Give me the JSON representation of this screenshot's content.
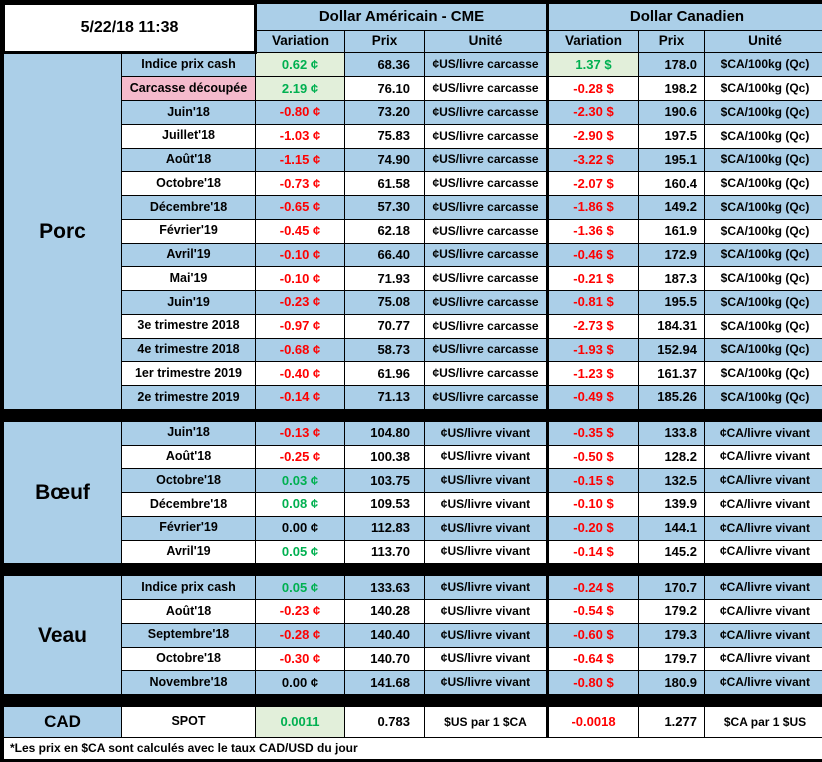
{
  "header": {
    "timestamp": "5/22/18 11:38",
    "us": {
      "title": "Dollar Américain - CME",
      "columns": [
        "Variation",
        "Prix",
        "Unité"
      ]
    },
    "ca": {
      "title": "Dollar Canadien",
      "columns": [
        "Variation",
        "Prix",
        "Unité"
      ]
    }
  },
  "colors": {
    "stripe_blue": "#ABCFE8",
    "pink": "#F4BACC",
    "highlight_green": "#E2EFDA",
    "positive_green": "#00B050",
    "negative_red": "#FF0000"
  },
  "sections": [
    {
      "name": "Porc",
      "rows": [
        {
          "label": "Indice prix cash",
          "us": {
            "variation": "0.62 ¢",
            "tone": "pos",
            "hl": true,
            "prix": "68.36",
            "unite": "¢US/livre carcasse"
          },
          "ca": {
            "variation": "1.37 $",
            "tone": "pos",
            "hl": true,
            "prix": "178.0",
            "unite": "$CA/100kg (Qc)"
          }
        },
        {
          "label": "Carcasse découpée",
          "highlight": "pink",
          "us": {
            "variation": "2.19 ¢",
            "tone": "pos",
            "hl": true,
            "prix": "76.10",
            "unite": "¢US/livre carcasse"
          },
          "ca": {
            "variation": "-0.28 $",
            "tone": "neg",
            "prix": "198.2",
            "unite": "$CA/100kg (Qc)"
          }
        },
        {
          "label": "Juin'18",
          "us": {
            "variation": "-0.80 ¢",
            "tone": "neg",
            "prix": "73.20",
            "unite": "¢US/livre carcasse"
          },
          "ca": {
            "variation": "-2.30 $",
            "tone": "neg",
            "prix": "190.6",
            "unite": "$CA/100kg (Qc)"
          }
        },
        {
          "label": "Juillet'18",
          "us": {
            "variation": "-1.03 ¢",
            "tone": "neg",
            "prix": "75.83",
            "unite": "¢US/livre carcasse"
          },
          "ca": {
            "variation": "-2.90 $",
            "tone": "neg",
            "prix": "197.5",
            "unite": "$CA/100kg (Qc)"
          }
        },
        {
          "label": "Août'18",
          "us": {
            "variation": "-1.15 ¢",
            "tone": "neg",
            "prix": "74.90",
            "unite": "¢US/livre carcasse"
          },
          "ca": {
            "variation": "-3.22 $",
            "tone": "neg",
            "prix": "195.1",
            "unite": "$CA/100kg (Qc)"
          }
        },
        {
          "label": "Octobre'18",
          "us": {
            "variation": "-0.73 ¢",
            "tone": "neg",
            "prix": "61.58",
            "unite": "¢US/livre carcasse"
          },
          "ca": {
            "variation": "-2.07 $",
            "tone": "neg",
            "prix": "160.4",
            "unite": "$CA/100kg (Qc)"
          }
        },
        {
          "label": "Décembre'18",
          "us": {
            "variation": "-0.65 ¢",
            "tone": "neg",
            "prix": "57.30",
            "unite": "¢US/livre carcasse"
          },
          "ca": {
            "variation": "-1.86 $",
            "tone": "neg",
            "prix": "149.2",
            "unite": "$CA/100kg (Qc)"
          }
        },
        {
          "label": "Février'19",
          "us": {
            "variation": "-0.45 ¢",
            "tone": "neg",
            "prix": "62.18",
            "unite": "¢US/livre carcasse"
          },
          "ca": {
            "variation": "-1.36 $",
            "tone": "neg",
            "prix": "161.9",
            "unite": "$CA/100kg (Qc)"
          }
        },
        {
          "label": "Avril'19",
          "us": {
            "variation": "-0.10 ¢",
            "tone": "neg",
            "prix": "66.40",
            "unite": "¢US/livre carcasse"
          },
          "ca": {
            "variation": "-0.46 $",
            "tone": "neg",
            "prix": "172.9",
            "unite": "$CA/100kg (Qc)"
          }
        },
        {
          "label": "Mai'19",
          "us": {
            "variation": "-0.10 ¢",
            "tone": "neg",
            "prix": "71.93",
            "unite": "¢US/livre carcasse"
          },
          "ca": {
            "variation": "-0.21 $",
            "tone": "neg",
            "prix": "187.3",
            "unite": "$CA/100kg (Qc)"
          }
        },
        {
          "label": "Juin'19",
          "us": {
            "variation": "-0.23 ¢",
            "tone": "neg",
            "prix": "75.08",
            "unite": "¢US/livre carcasse"
          },
          "ca": {
            "variation": "-0.81 $",
            "tone": "neg",
            "prix": "195.5",
            "unite": "$CA/100kg (Qc)"
          }
        },
        {
          "label": "3e trimestre 2018",
          "us": {
            "variation": "-0.97 ¢",
            "tone": "neg",
            "prix": "70.77",
            "unite": "¢US/livre carcasse"
          },
          "ca": {
            "variation": "-2.73 $",
            "tone": "neg",
            "prix": "184.31",
            "unite": "$CA/100kg (Qc)"
          }
        },
        {
          "label": "4e trimestre 2018",
          "us": {
            "variation": "-0.68 ¢",
            "tone": "neg",
            "prix": "58.73",
            "unite": "¢US/livre carcasse"
          },
          "ca": {
            "variation": "-1.93 $",
            "tone": "neg",
            "prix": "152.94",
            "unite": "$CA/100kg (Qc)"
          }
        },
        {
          "label": "1er trimestre 2019",
          "us": {
            "variation": "-0.40 ¢",
            "tone": "neg",
            "prix": "61.96",
            "unite": "¢US/livre carcasse"
          },
          "ca": {
            "variation": "-1.23 $",
            "tone": "neg",
            "prix": "161.37",
            "unite": "$CA/100kg (Qc)"
          }
        },
        {
          "label": "2e trimestre 2019",
          "us": {
            "variation": "-0.14 ¢",
            "tone": "neg",
            "prix": "71.13",
            "unite": "¢US/livre carcasse"
          },
          "ca": {
            "variation": "-0.49 $",
            "tone": "neg",
            "prix": "185.26",
            "unite": "$CA/100kg (Qc)"
          }
        }
      ]
    },
    {
      "name": "Bœuf",
      "rows": [
        {
          "label": "Juin'18",
          "us": {
            "variation": "-0.13 ¢",
            "tone": "neg",
            "prix": "104.80",
            "unite": "¢US/livre vivant"
          },
          "ca": {
            "variation": "-0.35 $",
            "tone": "neg",
            "prix": "133.8",
            "unite": "¢CA/livre vivant"
          }
        },
        {
          "label": "Août'18",
          "us": {
            "variation": "-0.25 ¢",
            "tone": "neg",
            "prix": "100.38",
            "unite": "¢US/livre vivant"
          },
          "ca": {
            "variation": "-0.50 $",
            "tone": "neg",
            "prix": "128.2",
            "unite": "¢CA/livre vivant"
          }
        },
        {
          "label": "Octobre'18",
          "us": {
            "variation": "0.03 ¢",
            "tone": "pos",
            "prix": "103.75",
            "unite": "¢US/livre vivant"
          },
          "ca": {
            "variation": "-0.15 $",
            "tone": "neg",
            "prix": "132.5",
            "unite": "¢CA/livre vivant"
          }
        },
        {
          "label": "Décembre'18",
          "us": {
            "variation": "0.08 ¢",
            "tone": "pos",
            "prix": "109.53",
            "unite": "¢US/livre vivant"
          },
          "ca": {
            "variation": "-0.10 $",
            "tone": "neg",
            "prix": "139.9",
            "unite": "¢CA/livre vivant"
          }
        },
        {
          "label": "Février'19",
          "us": {
            "variation": "0.00 ¢",
            "tone": "zero",
            "prix": "112.83",
            "unite": "¢US/livre vivant"
          },
          "ca": {
            "variation": "-0.20 $",
            "tone": "neg",
            "prix": "144.1",
            "unite": "¢CA/livre vivant"
          }
        },
        {
          "label": "Avril'19",
          "us": {
            "variation": "0.05 ¢",
            "tone": "pos",
            "prix": "113.70",
            "unite": "¢US/livre vivant"
          },
          "ca": {
            "variation": "-0.14 $",
            "tone": "neg",
            "prix": "145.2",
            "unite": "¢CA/livre vivant"
          }
        }
      ]
    },
    {
      "name": "Veau",
      "rows": [
        {
          "label": "Indice prix cash",
          "us": {
            "variation": "0.05 ¢",
            "tone": "pos",
            "prix": "133.63",
            "unite": "¢US/livre vivant"
          },
          "ca": {
            "variation": "-0.24 $",
            "tone": "neg",
            "prix": "170.7",
            "unite": "¢CA/livre vivant"
          }
        },
        {
          "label": "Août'18",
          "us": {
            "variation": "-0.23 ¢",
            "tone": "neg",
            "prix": "140.28",
            "unite": "¢US/livre vivant"
          },
          "ca": {
            "variation": "-0.54 $",
            "tone": "neg",
            "prix": "179.2",
            "unite": "¢CA/livre vivant"
          }
        },
        {
          "label": "Septembre'18",
          "us": {
            "variation": "-0.28 ¢",
            "tone": "neg",
            "prix": "140.40",
            "unite": "¢US/livre vivant"
          },
          "ca": {
            "variation": "-0.60 $",
            "tone": "neg",
            "prix": "179.3",
            "unite": "¢CA/livre vivant"
          }
        },
        {
          "label": "Octobre'18",
          "us": {
            "variation": "-0.30 ¢",
            "tone": "neg",
            "prix": "140.70",
            "unite": "¢US/livre vivant"
          },
          "ca": {
            "variation": "-0.64 $",
            "tone": "neg",
            "prix": "179.7",
            "unite": "¢CA/livre vivant"
          }
        },
        {
          "label": "Novembre'18",
          "us": {
            "variation": "0.00 ¢",
            "tone": "zero",
            "prix": "141.68",
            "unite": "¢US/livre vivant"
          },
          "ca": {
            "variation": "-0.80 $",
            "tone": "neg",
            "prix": "180.9",
            "unite": "¢CA/livre vivant"
          }
        }
      ]
    },
    {
      "name": "CAD",
      "rows": [
        {
          "label": "SPOT",
          "us": {
            "variation": "0.0011",
            "tone": "pos",
            "hl": true,
            "prix": "0.783",
            "unite": "$US par 1 $CA"
          },
          "ca": {
            "variation": "-0.0018",
            "tone": "neg",
            "prix": "1.277",
            "unite": "$CA par 1 $US"
          }
        }
      ]
    }
  ],
  "footer": {
    "note": "*Les  prix en $CA sont calculés avec le taux CAD/USD du jour"
  }
}
